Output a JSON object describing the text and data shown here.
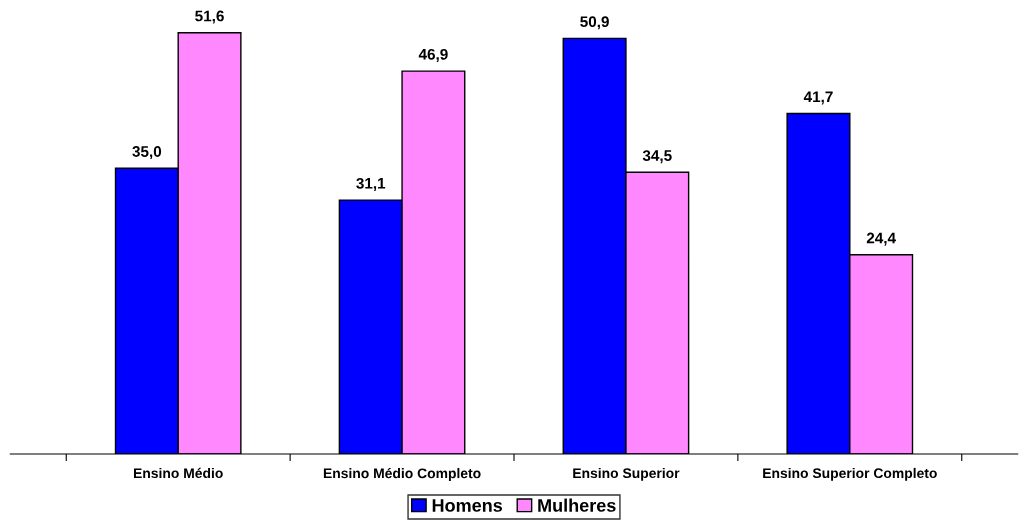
{
  "chart_data": {
    "type": "bar",
    "categories": [
      "Ensino Médio",
      "Ensino Médio Completo",
      "Ensino Superior",
      "Ensino Superior Completo"
    ],
    "series": [
      {
        "name": "Homens",
        "color": "#0000ff",
        "values": [
          35.0,
          31.1,
          50.9,
          41.7
        ],
        "value_labels": [
          "35,0",
          "31,1",
          "50,9",
          "41,7"
        ]
      },
      {
        "name": "Mulheres",
        "color": "#ff88ff",
        "values": [
          51.6,
          46.9,
          34.5,
          24.4
        ],
        "value_labels": [
          "51,6",
          "46,9",
          "34,5",
          "24,4"
        ]
      }
    ],
    "legend": "bottom",
    "grid": false,
    "tick_labels": "x"
  }
}
